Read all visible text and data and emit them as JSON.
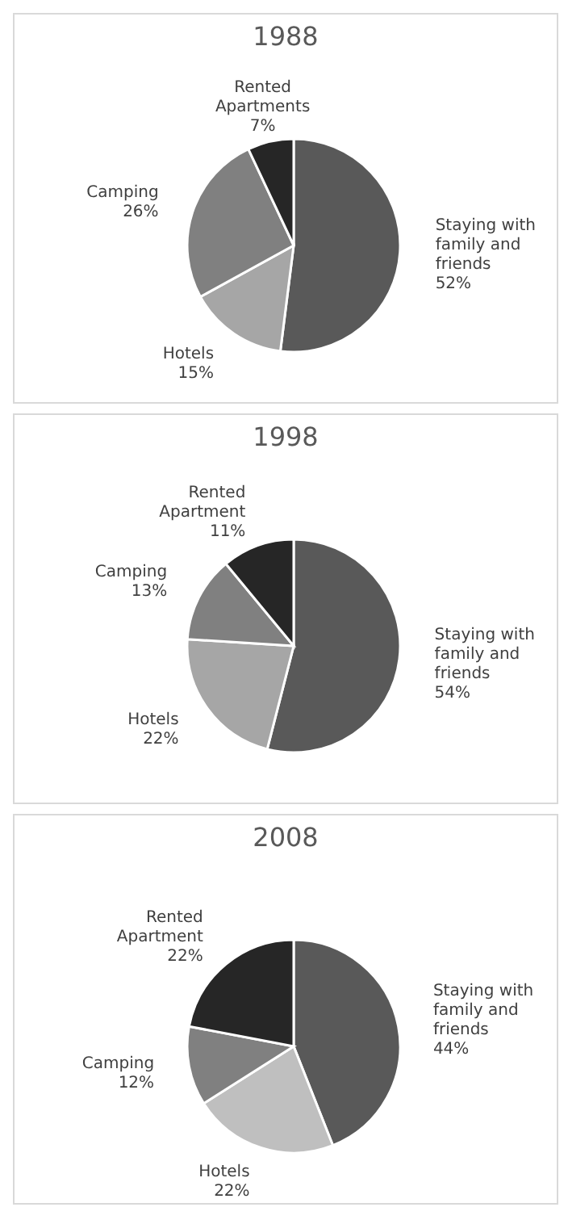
{
  "chart_data": [
    {
      "type": "pie",
      "title": "1988",
      "categories": [
        "Staying with family and friends",
        "Hotels",
        "Camping",
        "Rented Apartments"
      ],
      "values": [
        52,
        15,
        26,
        7
      ],
      "colors": [
        "#595959",
        "#a6a6a6",
        "#808080",
        "#262626"
      ],
      "value_labels": [
        "52%",
        "15%",
        "26%",
        "7%"
      ],
      "legend": false
    },
    {
      "type": "pie",
      "title": "1998",
      "categories": [
        "Staying with family and friends",
        "Hotels",
        "Camping",
        "Rented Apartment"
      ],
      "values": [
        54,
        22,
        13,
        11
      ],
      "colors": [
        "#595959",
        "#a6a6a6",
        "#808080",
        "#262626"
      ],
      "value_labels": [
        "54%",
        "22%",
        "13%",
        "11%"
      ],
      "legend": false
    },
    {
      "type": "pie",
      "title": "2008",
      "categories": [
        "Staying with family and friends",
        "Hotels",
        "Camping",
        "Rented Apartment"
      ],
      "values": [
        44,
        22,
        12,
        22
      ],
      "colors": [
        "#595959",
        "#bfbfbf",
        "#808080",
        "#262626"
      ],
      "value_labels": [
        "44%",
        "22%",
        "12%",
        "22%"
      ],
      "legend": false
    }
  ]
}
